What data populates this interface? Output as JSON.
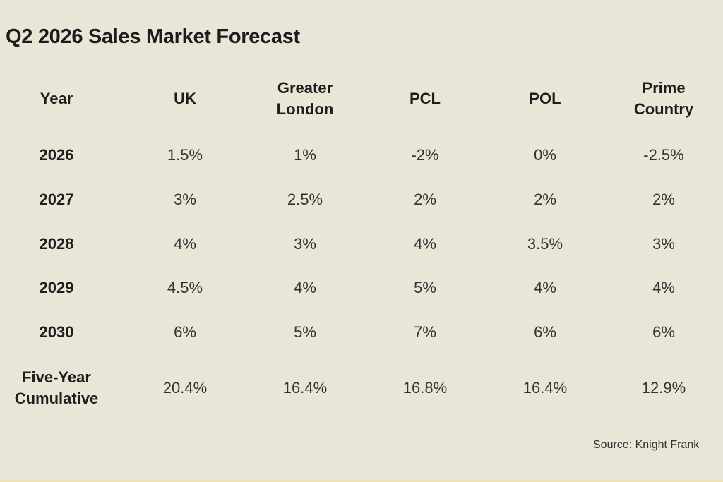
{
  "title": "Q2 2026 Sales Market Forecast",
  "table": {
    "headers": [
      "Year",
      "UK",
      "Greater London",
      "PCL",
      "POL",
      "Prime Country"
    ],
    "rows": [
      {
        "year": "2026",
        "values": [
          "1.5%",
          "1%",
          "-2%",
          "0%",
          "-2.5%"
        ]
      },
      {
        "year": "2027",
        "values": [
          "3%",
          "2.5%",
          "2%",
          "2%",
          "2%"
        ]
      },
      {
        "year": "2028",
        "values": [
          "4%",
          "3%",
          "4%",
          "3.5%",
          "3%"
        ]
      },
      {
        "year": "2029",
        "values": [
          "4.5%",
          "4%",
          "5%",
          "4%",
          "4%"
        ]
      },
      {
        "year": "2030",
        "values": [
          "6%",
          "5%",
          "7%",
          "6%",
          "6%"
        ]
      },
      {
        "year": "Five-Year Cumulative",
        "values": [
          "20.4%",
          "16.4%",
          "16.8%",
          "16.4%",
          "12.9%"
        ]
      }
    ]
  },
  "source": "Source: Knight Frank"
}
